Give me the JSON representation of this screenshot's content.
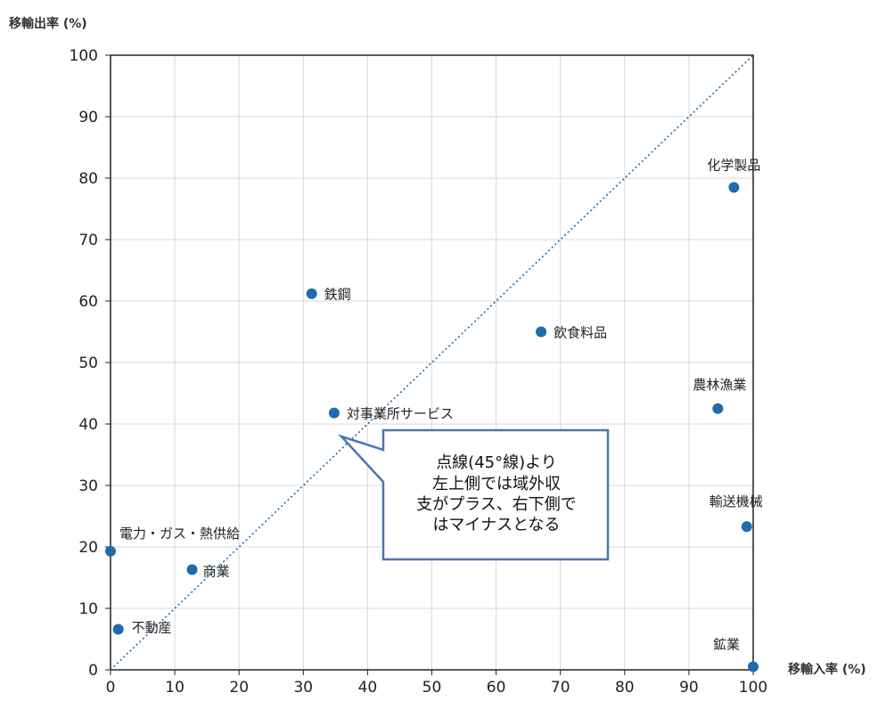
{
  "chart_data": {
    "type": "scatter",
    "ylabel": "移輸出率 (%)",
    "xlabel": "移輸入率 (%)",
    "xlim": [
      0,
      100
    ],
    "ylim": [
      0,
      100
    ],
    "xticks": [
      0,
      10,
      20,
      30,
      40,
      50,
      60,
      70,
      80,
      90,
      100
    ],
    "yticks": [
      0,
      10,
      20,
      30,
      40,
      50,
      60,
      70,
      80,
      90,
      100
    ],
    "grid": true,
    "reference_line": {
      "style": "dotted",
      "slope": 1,
      "intercept": 0
    },
    "points": [
      {
        "label": "化学製品",
        "x": 97,
        "y": 78.5
      },
      {
        "label": "鉄鋼",
        "x": 31.3,
        "y": 61.2
      },
      {
        "label": "飲食料品",
        "x": 67,
        "y": 55
      },
      {
        "label": "農林漁業",
        "x": 94.5,
        "y": 42.5
      },
      {
        "label": "対事業所サービス",
        "x": 34.8,
        "y": 41.8
      },
      {
        "label": "輸送機械",
        "x": 99,
        "y": 23.3
      },
      {
        "label": "電力・ガス・熱供給",
        "x": 0,
        "y": 19.3
      },
      {
        "label": "商業",
        "x": 12.7,
        "y": 16.3
      },
      {
        "label": "不動産",
        "x": 1.2,
        "y": 6.6
      },
      {
        "label": "鉱業",
        "x": 100,
        "y": 0.5
      }
    ],
    "point_color": "#1f6bb0",
    "callout_text": "点線(45°線)より\n左上側では域外収\n支がプラス、右下側で\nはマイナスとなる",
    "callout_border_color": "#4a78b0"
  }
}
